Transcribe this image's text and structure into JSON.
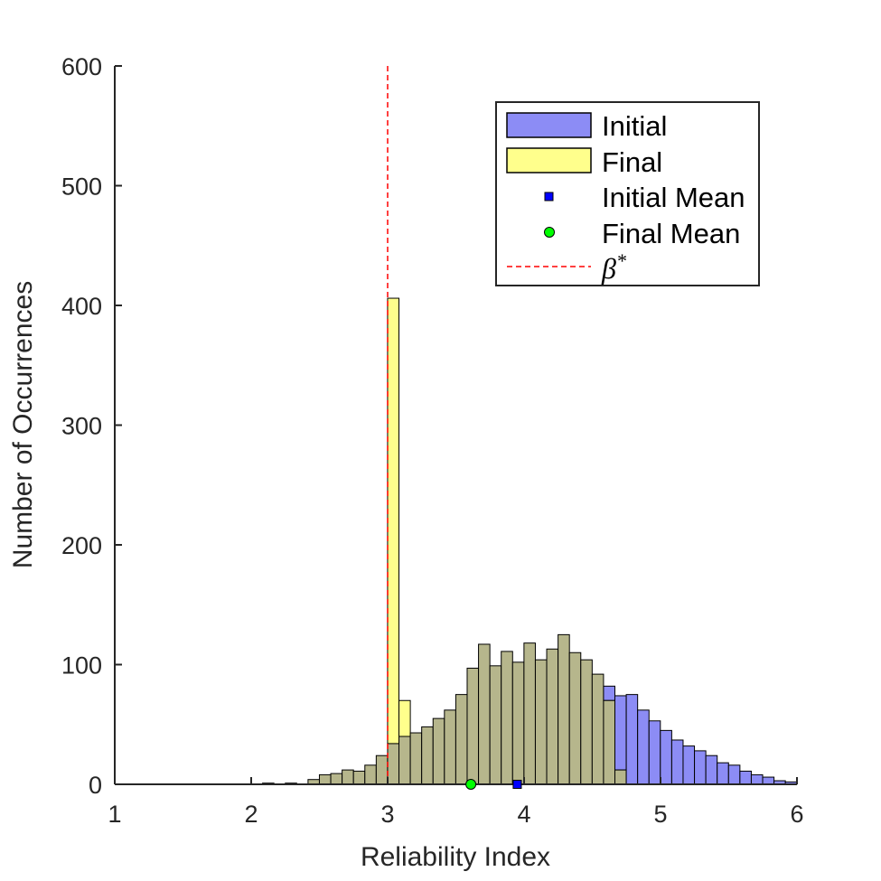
{
  "chart_data": {
    "type": "histogram",
    "xlabel": "Reliability Index",
    "ylabel": "Number of Occurrences",
    "xlim": [
      1,
      6
    ],
    "ylim": [
      0,
      600
    ],
    "xticks": [
      "1",
      "2",
      "3",
      "4",
      "5",
      "6"
    ],
    "yticks": [
      "0",
      "100",
      "200",
      "300",
      "400",
      "500",
      "600"
    ],
    "bin_width": 0.0833,
    "bin_start": 2.0,
    "colors": {
      "initial": "#8c8cf5",
      "final": "#ffff8c",
      "overlap": "#b6b68c",
      "beta_line": "#ff0000",
      "initial_mean_marker": "#0000ff",
      "final_mean_marker": "#00ff00"
    },
    "series": [
      {
        "name": "Initial",
        "values": [
          0,
          1,
          0,
          1,
          0,
          4,
          8,
          9,
          12,
          11,
          16,
          24,
          34,
          40,
          43,
          48,
          55,
          62,
          75,
          97,
          117,
          99,
          111,
          102,
          118,
          104,
          113,
          125,
          110,
          104,
          92,
          82,
          74,
          75,
          62,
          53,
          45,
          37,
          32,
          28,
          24,
          18,
          16,
          11,
          8,
          6,
          3,
          2
        ]
      },
      {
        "name": "Final",
        "values": [
          0,
          1,
          0,
          1,
          0,
          4,
          8,
          9,
          12,
          11,
          16,
          24,
          406,
          70,
          43,
          48,
          55,
          62,
          75,
          97,
          117,
          99,
          111,
          102,
          118,
          104,
          113,
          125,
          110,
          104,
          92,
          70,
          12,
          0,
          0,
          0,
          0,
          0,
          0,
          0,
          0,
          0,
          0,
          0,
          0,
          0,
          0,
          0
        ]
      }
    ],
    "initial_mean": 3.95,
    "final_mean": 3.61,
    "beta_star": 3.0,
    "legend": {
      "position": "top-right",
      "entries": [
        "Initial",
        "Final",
        "Initial Mean",
        "Final Mean"
      ],
      "beta_symbol": "β",
      "beta_superscript": "*"
    }
  }
}
